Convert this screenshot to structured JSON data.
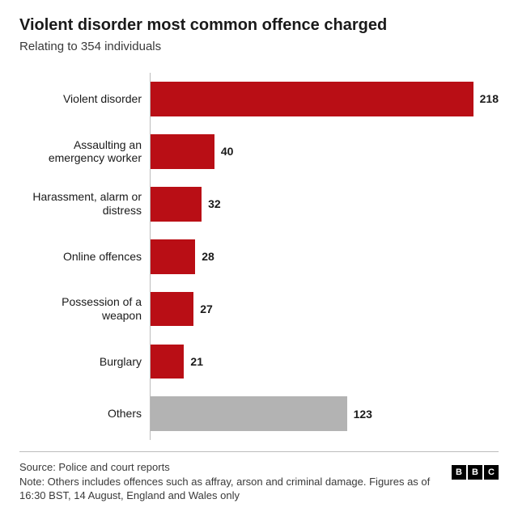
{
  "title": "Violent disorder most common offence charged",
  "subtitle": "Relating to 354 individuals",
  "chart": {
    "type": "bar-horizontal",
    "xmax": 218,
    "bar_color": "#b90e15",
    "other_color": "#b3b3b3",
    "background_color": "#ffffff",
    "axis_color": "#bcbcbc",
    "label_fontsize": 14,
    "value_fontsize": 14,
    "value_fontweight": 700,
    "text_color": "#1a1a1a",
    "items": [
      {
        "label": "Violent disorder",
        "value": 218,
        "is_other": false
      },
      {
        "label": "Assaulting an emergency worker",
        "value": 40,
        "is_other": false
      },
      {
        "label": "Harassment, alarm or distress",
        "value": 32,
        "is_other": false
      },
      {
        "label": "Online offences",
        "value": 28,
        "is_other": false
      },
      {
        "label": "Possession of a weapon",
        "value": 27,
        "is_other": false
      },
      {
        "label": "Burglary",
        "value": 21,
        "is_other": false
      },
      {
        "label": "Others",
        "value": 123,
        "is_other": true
      }
    ]
  },
  "source": "Source: Police and court reports",
  "note": "Note: Others includes offences such as affray, arson and criminal damage. Figures as of 16:30 BST, 14 August, England and Wales only",
  "logo": {
    "l0": "B",
    "l1": "B",
    "l2": "C"
  }
}
